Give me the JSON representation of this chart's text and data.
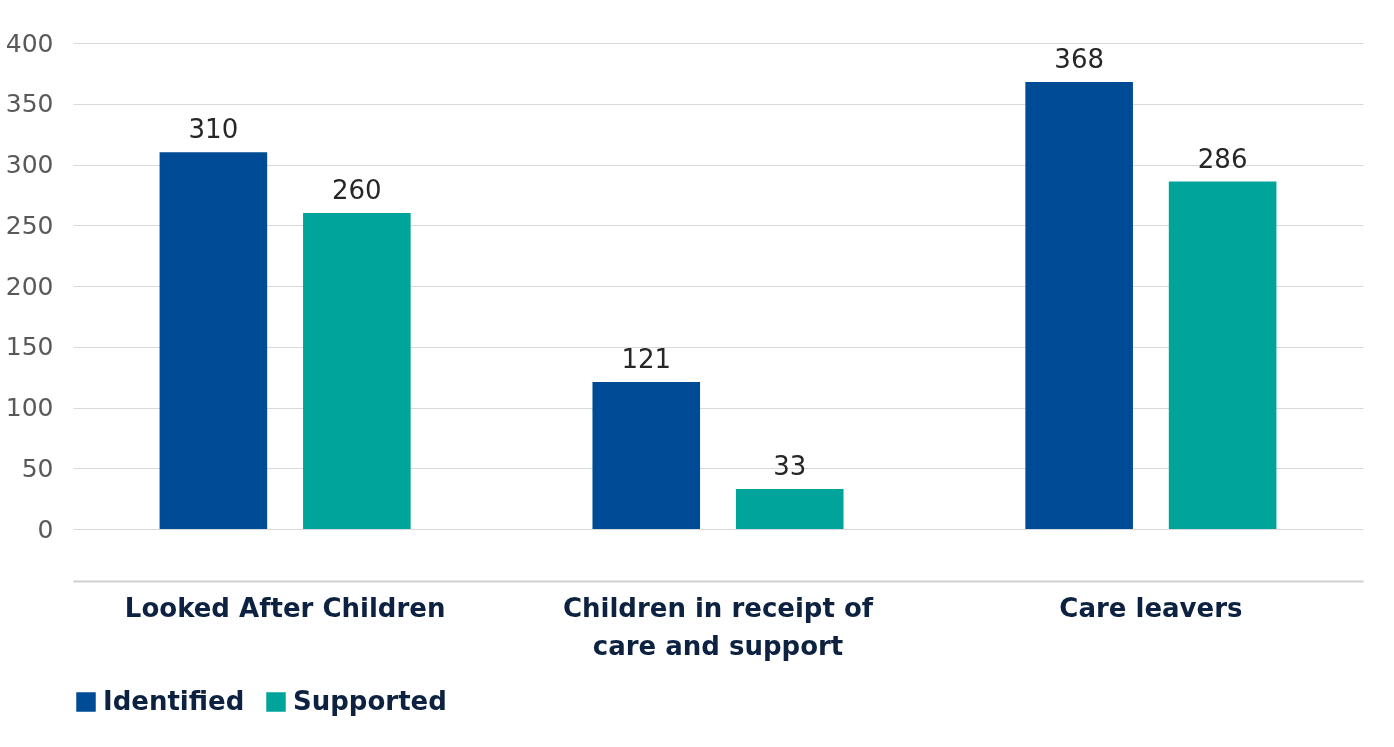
{
  "chart_data": {
    "type": "bar",
    "categories": [
      "Looked After Children",
      "Children in receipt of care and support",
      "Care leavers"
    ],
    "series": [
      {
        "name": "Identified",
        "color": "#004b96",
        "values": [
          310,
          121,
          368
        ]
      },
      {
        "name": "Supported",
        "color": "#00a49a",
        "values": [
          260,
          33,
          286
        ]
      }
    ],
    "ylim": [
      0,
      400
    ],
    "yticks": [
      0,
      50,
      100,
      150,
      200,
      250,
      300,
      350,
      400
    ],
    "grid": "y",
    "legend": "bottom",
    "data_labels": true
  }
}
